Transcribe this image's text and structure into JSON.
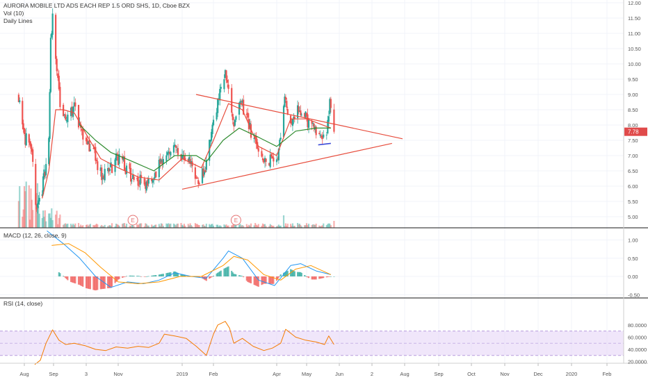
{
  "symbol_title": "AURORA MOBILE LTD ADS EACH REP 1.5 ORD SHS, 1D, Cboe BZX",
  "volume_label": "Vol (10)",
  "lines_label": "Daily Lines",
  "macd_label": "MACD (12, 26, close, 9)",
  "rsi_label": "RSI (14, close)",
  "last_price_label": "7.78",
  "earnings_marker": "E",
  "colors": {
    "up": "#26a69a",
    "down": "#ef5350",
    "ma_fast": "#e74c3c",
    "ma_slow": "#2e8b2e",
    "trendline": "#e74c3c",
    "support": "#3b4bd8",
    "macd_line": "#2196f3",
    "signal_line": "#ff9800",
    "rsi_line": "#f57c00",
    "rsi_band": "#e6d6f7",
    "price_tag": "#e04a4a"
  },
  "chart_data": [
    {
      "type": "candlestick",
      "title": "AURORA MOBILE LTD ADS EACH REP 1.5 ORD SHS, 1D, Cboe BZX",
      "y_ticks": [
        "12.00",
        "11.50",
        "11.00",
        "10.50",
        "10.00",
        "9.50",
        "9.00",
        "8.50",
        "8.00",
        "7.50",
        "7.00",
        "6.50",
        "6.00",
        "5.50",
        "5.00"
      ],
      "ylim": [
        4.8,
        12.0
      ],
      "x_ticks": [
        "Aug",
        "Sep",
        "3",
        "Nov",
        "2019",
        "Feb",
        "Apr",
        "May",
        "Jun",
        "2",
        "Aug",
        "Sep",
        "Oct",
        "Nov",
        "Dec",
        "2020",
        "Feb"
      ],
      "last_price": 7.78,
      "close_path": [
        {
          "date": "2018-07-26",
          "close": 9.0
        },
        {
          "date": "2018-08-02",
          "close": 7.6
        },
        {
          "date": "2018-08-09",
          "close": 6.9
        },
        {
          "date": "2018-08-14",
          "close": 5.3
        },
        {
          "date": "2018-08-20",
          "close": 5.9
        },
        {
          "date": "2018-08-27",
          "close": 7.5
        },
        {
          "date": "2018-08-29",
          "close": 10.7
        },
        {
          "date": "2018-08-31",
          "close": 11.7
        },
        {
          "date": "2018-09-04",
          "close": 9.8
        },
        {
          "date": "2018-09-07",
          "close": 8.6
        },
        {
          "date": "2018-09-12",
          "close": 8.0
        },
        {
          "date": "2018-09-19",
          "close": 8.6
        },
        {
          "date": "2018-09-26",
          "close": 7.9
        },
        {
          "date": "2018-10-03",
          "close": 7.4
        },
        {
          "date": "2018-10-10",
          "close": 6.9
        },
        {
          "date": "2018-10-17",
          "close": 6.3
        },
        {
          "date": "2018-10-24",
          "close": 6.6
        },
        {
          "date": "2018-11-01",
          "close": 6.9
        },
        {
          "date": "2018-11-08",
          "close": 6.6
        },
        {
          "date": "2018-11-15",
          "close": 6.3
        },
        {
          "date": "2018-11-22",
          "close": 6.2
        },
        {
          "date": "2018-11-29",
          "close": 6.1
        },
        {
          "date": "2018-12-06",
          "close": 6.3
        },
        {
          "date": "2018-12-13",
          "close": 6.9
        },
        {
          "date": "2018-12-20",
          "close": 7.3
        },
        {
          "date": "2018-12-27",
          "close": 7.1
        },
        {
          "date": "2019-01-03",
          "close": 6.9
        },
        {
          "date": "2019-01-10",
          "close": 6.7
        },
        {
          "date": "2019-01-17",
          "close": 6.2
        },
        {
          "date": "2019-01-24",
          "close": 6.6
        },
        {
          "date": "2019-01-31",
          "close": 8.0
        },
        {
          "date": "2019-02-07",
          "close": 9.1
        },
        {
          "date": "2019-02-13",
          "close": 9.7
        },
        {
          "date": "2019-02-20",
          "close": 8.0
        },
        {
          "date": "2019-02-27",
          "close": 8.7
        },
        {
          "date": "2019-03-06",
          "close": 7.9
        },
        {
          "date": "2019-03-13",
          "close": 7.4
        },
        {
          "date": "2019-03-20",
          "close": 6.8
        },
        {
          "date": "2019-03-27",
          "close": 6.9
        },
        {
          "date": "2019-04-03",
          "close": 7.1
        },
        {
          "date": "2019-04-08",
          "close": 8.8
        },
        {
          "date": "2019-04-15",
          "close": 8.2
        },
        {
          "date": "2019-04-22",
          "close": 8.6
        },
        {
          "date": "2019-04-29",
          "close": 8.3
        },
        {
          "date": "2019-05-06",
          "close": 8.0
        },
        {
          "date": "2019-05-13",
          "close": 7.8
        },
        {
          "date": "2019-05-20",
          "close": 7.7
        },
        {
          "date": "2019-05-23",
          "close": 8.7
        },
        {
          "date": "2019-05-27",
          "close": 7.78
        }
      ],
      "ma_fast_path": [
        {
          "date": "2018-08-20",
          "value": 5.6
        },
        {
          "date": "2018-08-27",
          "value": 6.5
        },
        {
          "date": "2018-09-03",
          "value": 8.5
        },
        {
          "date": "2018-09-10",
          "value": 8.5
        },
        {
          "date": "2018-09-20",
          "value": 8.4
        },
        {
          "date": "2018-10-01",
          "value": 7.7
        },
        {
          "date": "2018-10-15",
          "value": 6.9
        },
        {
          "date": "2018-11-01",
          "value": 6.6
        },
        {
          "date": "2018-11-20",
          "value": 6.3
        },
        {
          "date": "2018-12-10",
          "value": 6.2
        },
        {
          "date": "2019-01-01",
          "value": 6.9
        },
        {
          "date": "2019-01-20",
          "value": 6.6
        },
        {
          "date": "2019-02-01",
          "value": 7.5
        },
        {
          "date": "2019-02-15",
          "value": 8.7
        },
        {
          "date": "2019-02-28",
          "value": 8.5
        },
        {
          "date": "2019-03-15",
          "value": 7.3
        },
        {
          "date": "2019-04-01",
          "value": 7.0
        },
        {
          "date": "2019-04-15",
          "value": 8.2
        },
        {
          "date": "2019-05-01",
          "value": 8.2
        },
        {
          "date": "2019-05-24",
          "value": 7.9
        }
      ],
      "ma_slow_path": [
        {
          "date": "2018-09-25",
          "value": 8.0
        },
        {
          "date": "2018-10-10",
          "value": 7.5
        },
        {
          "date": "2018-10-25",
          "value": 7.1
        },
        {
          "date": "2018-11-15",
          "value": 6.8
        },
        {
          "date": "2018-12-05",
          "value": 6.5
        },
        {
          "date": "2018-12-25",
          "value": 7.0
        },
        {
          "date": "2019-01-15",
          "value": 7.0
        },
        {
          "date": "2019-01-25",
          "value": 6.8
        },
        {
          "date": "2019-02-10",
          "value": 7.5
        },
        {
          "date": "2019-02-25",
          "value": 7.9
        },
        {
          "date": "2019-03-15",
          "value": 7.6
        },
        {
          "date": "2019-04-01",
          "value": 7.3
        },
        {
          "date": "2019-04-20",
          "value": 7.8
        },
        {
          "date": "2019-05-10",
          "value": 7.9
        },
        {
          "date": "2019-05-24",
          "value": 7.9
        }
      ],
      "trendlines": [
        {
          "from": {
            "date": "2019-01-12",
            "value": 9.0
          },
          "to": {
            "date": "2019-07-30",
            "value": 7.55
          },
          "note": "descending resistance, starts at x=282"
        },
        {
          "from": {
            "date": "2019-01-01",
            "value": 5.9
          },
          "to": {
            "date": "2019-07-20",
            "value": 7.4
          },
          "note": "ascending support"
        },
        {
          "from": {
            "date": "2019-05-12",
            "value": 7.35
          },
          "to": {
            "date": "2019-05-24",
            "value": 7.4
          },
          "note": "short support segment"
        }
      ],
      "earnings_dates": [
        "2018-11-15",
        "2019-02-22"
      ]
    },
    {
      "type": "line",
      "title": "MACD (12, 26, close, 9)",
      "y_ticks": [
        "1.00",
        "0.50",
        "0.00",
        "-0.50"
      ],
      "ylim": [
        -0.6,
        1.3
      ],
      "macd_path": [
        {
          "date": "2018-08-25",
          "value": 1.25
        },
        {
          "date": "2018-09-10",
          "value": 0.9
        },
        {
          "date": "2018-09-25",
          "value": 0.5
        },
        {
          "date": "2018-10-10",
          "value": 0.0
        },
        {
          "date": "2018-10-25",
          "value": -0.3
        },
        {
          "date": "2018-11-10",
          "value": -0.15
        },
        {
          "date": "2018-11-25",
          "value": -0.2
        },
        {
          "date": "2018-12-10",
          "value": -0.1
        },
        {
          "date": "2018-12-25",
          "value": 0.1
        },
        {
          "date": "2019-01-10",
          "value": 0.0
        },
        {
          "date": "2019-01-25",
          "value": -0.05
        },
        {
          "date": "2019-02-10",
          "value": 0.5
        },
        {
          "date": "2019-02-15",
          "value": 0.7
        },
        {
          "date": "2019-02-28",
          "value": 0.5
        },
        {
          "date": "2019-03-15",
          "value": -0.1
        },
        {
          "date": "2019-03-30",
          "value": -0.25
        },
        {
          "date": "2019-04-15",
          "value": 0.3
        },
        {
          "date": "2019-04-25",
          "value": 0.35
        },
        {
          "date": "2019-05-10",
          "value": 0.15
        },
        {
          "date": "2019-05-24",
          "value": 0.05
        }
      ],
      "signal_path": [
        {
          "date": "2018-08-30",
          "value": 0.85
        },
        {
          "date": "2018-09-15",
          "value": 0.9
        },
        {
          "date": "2018-09-30",
          "value": 0.65
        },
        {
          "date": "2018-10-15",
          "value": 0.25
        },
        {
          "date": "2018-11-01",
          "value": -0.15
        },
        {
          "date": "2018-11-20",
          "value": -0.2
        },
        {
          "date": "2018-12-10",
          "value": -0.15
        },
        {
          "date": "2018-12-30",
          "value": 0.0
        },
        {
          "date": "2019-01-20",
          "value": 0.0
        },
        {
          "date": "2019-02-10",
          "value": 0.3
        },
        {
          "date": "2019-02-20",
          "value": 0.55
        },
        {
          "date": "2019-03-05",
          "value": 0.45
        },
        {
          "date": "2019-03-20",
          "value": 0.05
        },
        {
          "date": "2019-04-05",
          "value": -0.1
        },
        {
          "date": "2019-04-20",
          "value": 0.2
        },
        {
          "date": "2019-05-05",
          "value": 0.3
        },
        {
          "date": "2019-05-24",
          "value": 0.05
        }
      ]
    },
    {
      "type": "line",
      "title": "RSI (14, close)",
      "y_ticks": [
        "80.0000",
        "60.0000",
        "40.0000",
        "20.0000"
      ],
      "ylim": [
        12,
        86
      ],
      "band": [
        30,
        70
      ],
      "mid": 50,
      "rsi_path": [
        {
          "date": "2018-08-12",
          "value": 15
        },
        {
          "date": "2018-08-18",
          "value": 22
        },
        {
          "date": "2018-08-24",
          "value": 50
        },
        {
          "date": "2018-08-31",
          "value": 72
        },
        {
          "date": "2018-09-06",
          "value": 55
        },
        {
          "date": "2018-09-12",
          "value": 48
        },
        {
          "date": "2018-09-20",
          "value": 50
        },
        {
          "date": "2018-09-30",
          "value": 46
        },
        {
          "date": "2018-10-10",
          "value": 40
        },
        {
          "date": "2018-10-20",
          "value": 38
        },
        {
          "date": "2018-10-30",
          "value": 44
        },
        {
          "date": "2018-11-10",
          "value": 42
        },
        {
          "date": "2018-11-20",
          "value": 45
        },
        {
          "date": "2018-11-30",
          "value": 43
        },
        {
          "date": "2018-12-10",
          "value": 50
        },
        {
          "date": "2018-12-15",
          "value": 65
        },
        {
          "date": "2018-12-25",
          "value": 62
        },
        {
          "date": "2019-01-05",
          "value": 58
        },
        {
          "date": "2019-01-15",
          "value": 45
        },
        {
          "date": "2019-01-25",
          "value": 30
        },
        {
          "date": "2019-02-01",
          "value": 65
        },
        {
          "date": "2019-02-05",
          "value": 80
        },
        {
          "date": "2019-02-12",
          "value": 86
        },
        {
          "date": "2019-02-16",
          "value": 75
        },
        {
          "date": "2019-02-20",
          "value": 50
        },
        {
          "date": "2019-02-28",
          "value": 58
        },
        {
          "date": "2019-03-10",
          "value": 45
        },
        {
          "date": "2019-03-20",
          "value": 38
        },
        {
          "date": "2019-03-28",
          "value": 42
        },
        {
          "date": "2019-04-05",
          "value": 50
        },
        {
          "date": "2019-04-10",
          "value": 73
        },
        {
          "date": "2019-04-20",
          "value": 60
        },
        {
          "date": "2019-04-30",
          "value": 55
        },
        {
          "date": "2019-05-10",
          "value": 52
        },
        {
          "date": "2019-05-18",
          "value": 48
        },
        {
          "date": "2019-05-22",
          "value": 62
        },
        {
          "date": "2019-05-27",
          "value": 48
        }
      ]
    }
  ]
}
